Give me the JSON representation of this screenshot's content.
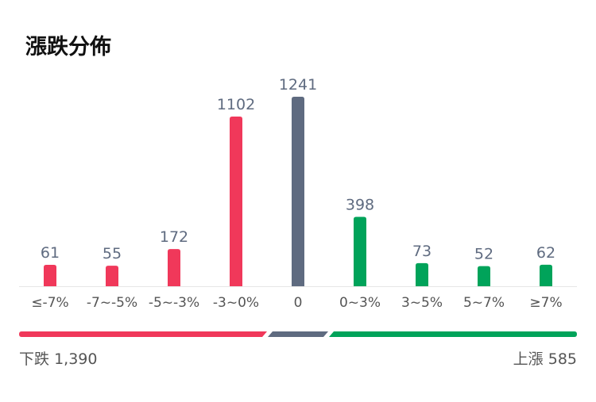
{
  "chart_data": {
    "type": "bar",
    "title": "漲跌分佈",
    "categories": [
      "≤-7%",
      "-7~-5%",
      "-5~-3%",
      "-3~0%",
      "0",
      "0~3%",
      "3~5%",
      "5~7%",
      "≥7%"
    ],
    "values": [
      61,
      55,
      172,
      1102,
      1241,
      398,
      73,
      52,
      62
    ],
    "colors": [
      "#f0385a",
      "#f0385a",
      "#f0385a",
      "#f0385a",
      "#5f6b80",
      "#00a35a",
      "#00a35a",
      "#00a35a",
      "#00a35a"
    ]
  },
  "summary": {
    "down": {
      "label": "下跌",
      "value": "1,390"
    },
    "up": {
      "label": "上漲",
      "value": "585"
    }
  }
}
